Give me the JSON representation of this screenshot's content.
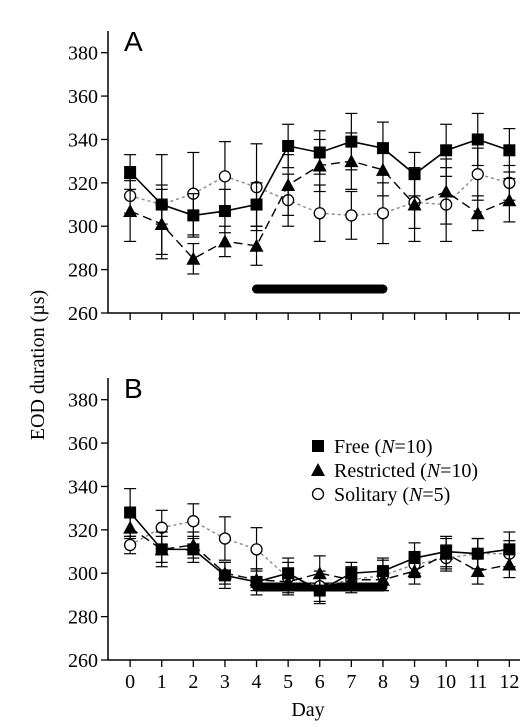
{
  "chart_data": {
    "type": "line",
    "ylabel": "EOD duration (µs)",
    "xlabel": "Day",
    "x": [
      0,
      1,
      2,
      3,
      4,
      5,
      6,
      7,
      8,
      9,
      10,
      11,
      12
    ],
    "xlim": [
      -0.7,
      12.4
    ],
    "ylim": [
      260,
      390
    ],
    "yticks": [
      260,
      280,
      300,
      320,
      340,
      360,
      380
    ],
    "legend": {
      "placement": "right",
      "entries": [
        {
          "text": "Free (",
          "italic": "N",
          "suffix": "=10)"
        },
        {
          "text": "Restricted (",
          "italic": "N",
          "suffix": "=10)"
        },
        {
          "text": "Solitary (",
          "italic": "N",
          "suffix": "=5)"
        }
      ]
    },
    "panels": [
      {
        "label": "A",
        "period": [
          4,
          8
        ],
        "series": [
          {
            "name": "Free (N=10)",
            "marker": "square",
            "line": "solid",
            "color": "#000000",
            "values": [
              325,
              310,
              305,
              307,
              310,
              337,
              334,
              339,
              336,
              324,
              335,
              340,
              335
            ],
            "errors": [
              8,
              9,
              10,
              10,
              10,
              10,
              10,
              13,
              12,
              10,
              12,
              12,
              10
            ]
          },
          {
            "name": "Restricted (N=10)",
            "marker": "triangle",
            "line": "dashed",
            "color": "#000000",
            "values": [
              307,
              301,
              285,
              293,
              291,
              319,
              328,
              330,
              326,
              310,
              316,
              306,
              312
            ],
            "errors": [
              14,
              16,
              7,
              7,
              9,
              14,
              12,
              13,
              12,
              17,
              15,
              8,
              10
            ]
          },
          {
            "name": "Solitary (N=5)",
            "marker": "circle",
            "line": "dotted",
            "color": "#888888",
            "values": [
              314,
              310,
              315,
              323,
              318,
              312,
              306,
              305,
              306,
              311,
              310,
              324,
              320
            ],
            "errors": [
              8,
              23,
              19,
              16,
              20,
              12,
              13,
              11,
              14,
              12,
              17,
              12,
              8
            ]
          }
        ]
      },
      {
        "label": "B",
        "period": [
          4,
          8
        ],
        "series": [
          {
            "name": "Free (N=10)",
            "marker": "square",
            "line": "solid",
            "color": "#000000",
            "values": [
              328,
              311,
              311,
              299,
              296,
              300,
              292,
              300,
              301,
              307,
              310,
              309,
              311
            ],
            "errors": [
              11,
              8,
              6,
              6,
              6,
              7,
              6,
              5,
              6,
              7,
              7,
              7,
              8
            ]
          },
          {
            "name": "Restricted (N=10)",
            "marker": "triangle",
            "line": "dashed",
            "color": "#000000",
            "values": [
              321,
              311,
              313,
              300,
              297,
              296,
              300,
              297,
              297,
              301,
              309,
              301,
              304
            ],
            "errors": [
              5,
              6,
              6,
              5,
              5,
              6,
              8,
              5,
              5,
              6,
              7,
              6,
              6
            ]
          },
          {
            "name": "Solitary (N=5)",
            "marker": "circle",
            "line": "dotted",
            "color": "#888888",
            "values": [
              313,
              321,
              324,
              316,
              311,
              298,
              294,
              297,
              299,
              304,
              307,
              309,
              309
            ],
            "errors": [
              4,
              8,
              8,
              10,
              10,
              7,
              7,
              6,
              7,
              6,
              6,
              7,
              6
            ]
          }
        ]
      }
    ]
  }
}
